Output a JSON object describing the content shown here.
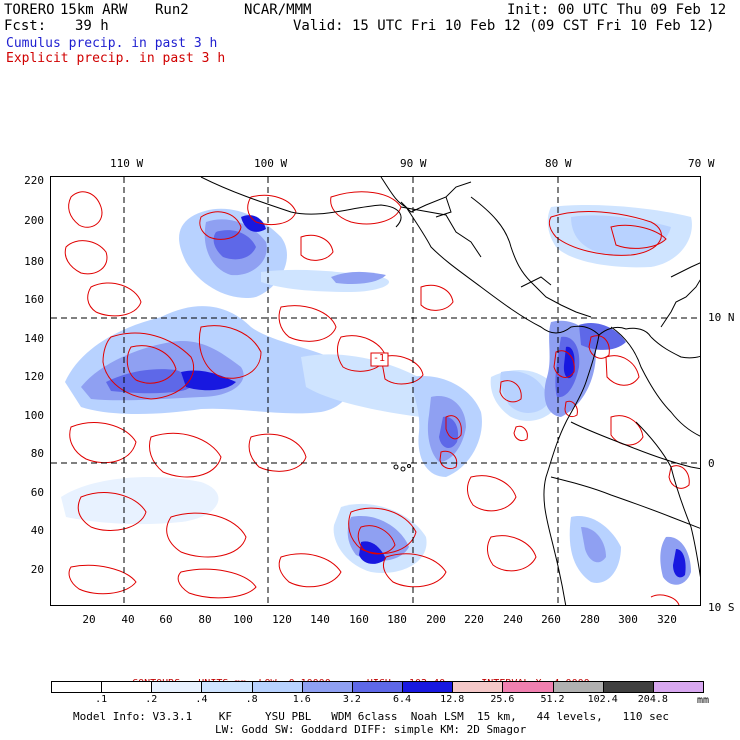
{
  "header": {
    "model": "TORERO",
    "resolution": "15km ARW",
    "run": "Run2",
    "org": "NCAR/MMM",
    "init": "Init: 00 UTC Thu 09 Feb 12",
    "fcst_label": "Fcst:",
    "fcst_value": "39 h",
    "valid": "Valid: 15 UTC Fri 10 Feb 12 (09 CST Fri 10 Feb 12)"
  },
  "fields": {
    "cumulus": "Cumulus precip. in past 3 h",
    "explicit": "Explicit precip. in past 3 h"
  },
  "colors": {
    "cumulus_text": "#1f1fd0",
    "explicit_text": "#d00000",
    "contour": "#e00000",
    "grid": "#000000"
  },
  "map": {
    "top_lon_labels": [
      "110 W",
      "100 W",
      "90 W",
      "80 W",
      "70 W"
    ],
    "right_lat_labels": [
      "10 N",
      "0",
      "10 S"
    ],
    "y_ticks": [
      "20",
      "40",
      "60",
      "80",
      "100",
      "120",
      "140",
      "160",
      "180",
      "200",
      "220"
    ],
    "x_ticks": [
      "20",
      "40",
      "60",
      "80",
      "100",
      "120",
      "140",
      "160",
      "180",
      "200",
      "220",
      "240",
      "260",
      "280",
      "300",
      "320"
    ],
    "local_min_label": "-1"
  },
  "contours": {
    "text_units": "CONTOURS:  UNITS=mm  LOW= 0.10000",
    "text_high": "HIGH=  102.40",
    "text_interval": "INTERVAL=X  4.0000"
  },
  "colorbar": {
    "unit": "mm",
    "labels": [
      ".1",
      ".2",
      ".4",
      ".8",
      "1.6",
      "3.2",
      "6.4",
      "12.8",
      "25.6",
      "51.2",
      "102.4",
      "204.8"
    ],
    "colors": [
      "#ffffff",
      "#ffffff",
      "#e8f2ff",
      "#cfe4ff",
      "#b8d2ff",
      "#8fa0f2",
      "#5e68e8",
      "#1818e0",
      "#f4c8c8",
      "#f080b0",
      "#b0b0b0",
      "#404040",
      "#d8a8f0"
    ]
  },
  "footer": {
    "line1": "Model Info: V3.3.1    KF     YSU PBL   WDM 6class  Noah LSM  15 km,   44 levels,   110 sec",
    "line2": "LW: Godd SW: Goddard DIFF: simple KM: 2D Smagor"
  }
}
